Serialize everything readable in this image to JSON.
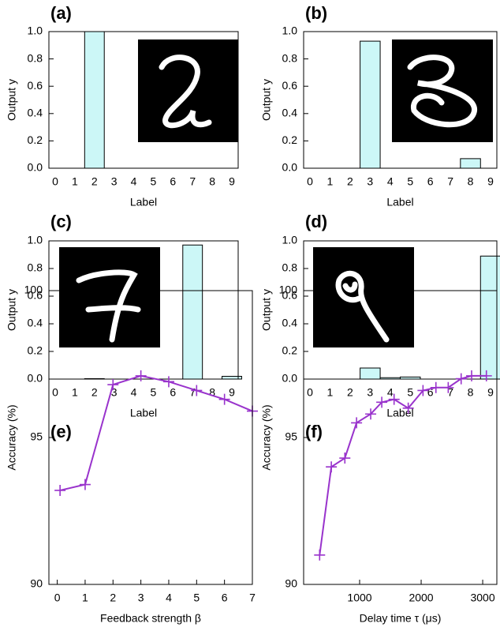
{
  "chart_data": [
    {
      "type": "bar",
      "panel_label": "(a)",
      "xlabel": "Label",
      "ylabel": "Output y",
      "color": "#ccf7f7",
      "categories": [
        "0",
        "1",
        "2",
        "3",
        "4",
        "5",
        "6",
        "7",
        "8",
        "9"
      ],
      "values": [
        0,
        0,
        1.0,
        0,
        0,
        0,
        0,
        0,
        0,
        0
      ],
      "ylim": [
        0,
        1
      ],
      "yticks": [
        {
          "value": 0,
          "label": "0.0"
        },
        0.2,
        0.4,
        0.6,
        0.8,
        {
          "value": 1,
          "label": "1.0"
        }
      ]
    },
    {
      "type": "bar",
      "panel_label": "(b)",
      "xlabel": "Label",
      "ylabel": "Output y",
      "color": "#ccf7f7",
      "categories": [
        "0",
        "1",
        "2",
        "3",
        "4",
        "5",
        "6",
        "7",
        "8",
        "9"
      ],
      "values": [
        0,
        0,
        0,
        0.93,
        0,
        0,
        0,
        0,
        0.07,
        0
      ],
      "ylim": [
        0,
        1
      ],
      "yticks": [
        {
          "value": 0,
          "label": "0.0"
        },
        0.2,
        0.4,
        0.6,
        0.8,
        {
          "value": 1,
          "label": "1.0"
        }
      ]
    },
    {
      "type": "bar",
      "panel_label": "(c)",
      "xlabel": "Label",
      "ylabel": "Output y",
      "color": "#ccf7f7",
      "categories": [
        "0",
        "1",
        "2",
        "3",
        "4",
        "5",
        "6",
        "7",
        "8",
        "9"
      ],
      "values": [
        0,
        0,
        0.003,
        0,
        0,
        0,
        0,
        0.97,
        0,
        0.02
      ],
      "ylim": [
        0,
        1
      ],
      "yticks": [
        {
          "value": 0,
          "label": "0.0"
        },
        0.2,
        0.4,
        0.6,
        0.8,
        {
          "value": 1,
          "label": "1.0"
        }
      ]
    },
    {
      "type": "bar",
      "panel_label": "(d)",
      "xlabel": "Label",
      "ylabel": "Output y",
      "color": "#ccf7f7",
      "categories": [
        "0",
        "1",
        "2",
        "3",
        "4",
        "5",
        "6",
        "7",
        "8",
        "9"
      ],
      "values": [
        0,
        0,
        0,
        0.08,
        0.01,
        0.015,
        0,
        0,
        0,
        0.89
      ],
      "ylim": [
        0,
        1
      ],
      "yticks": [
        {
          "value": 0,
          "label": "0.0"
        },
        0.2,
        0.4,
        0.6,
        0.8,
        {
          "value": 1,
          "label": "1.0"
        }
      ]
    },
    {
      "type": "line",
      "panel_label": "(e)",
      "xlabel": "Feedback strength β",
      "ylabel": "Accuracy (%)",
      "color": "#9933cc",
      "x": [
        0.1,
        1,
        2,
        3,
        4,
        5,
        6,
        7
      ],
      "values": [
        93.2,
        93.4,
        96.8,
        97.1,
        96.9,
        96.6,
        96.3,
        95.9
      ],
      "xlim": [
        -0.3,
        7
      ],
      "xticks": [
        0,
        1,
        2,
        3,
        4,
        5,
        6,
        7
      ],
      "ylim": [
        90,
        100
      ],
      "yticks": [
        90,
        95,
        100
      ]
    },
    {
      "type": "line",
      "panel_label": "(f)",
      "xlabel": "Delay time τ (μs)",
      "ylabel": "Accuracy (%)",
      "color": "#9933cc",
      "x": [
        350,
        540,
        760,
        950,
        1180,
        1360,
        1560,
        1790,
        2030,
        2240,
        2440,
        2650,
        2820,
        3060
      ],
      "values": [
        91.0,
        94.0,
        94.3,
        95.5,
        95.8,
        96.2,
        96.3,
        96.0,
        96.6,
        96.7,
        96.7,
        97.0,
        97.1,
        97.1
      ],
      "xlim": [
        90,
        3230
      ],
      "xticks": [
        1000,
        2000,
        3000
      ],
      "ylim": [
        90,
        100
      ],
      "yticks": [
        90,
        95,
        100
      ]
    }
  ]
}
